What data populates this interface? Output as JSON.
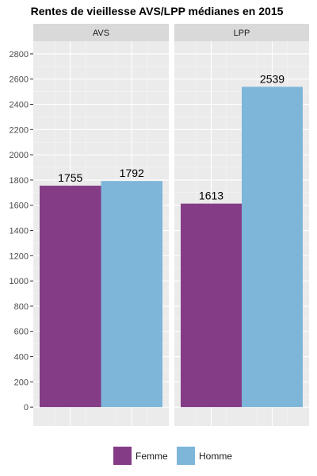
{
  "chart_data": {
    "type": "bar",
    "title": "Rentes de vieillesse AVS/LPP médianes en 2015",
    "xlabel": "",
    "ylabel": "",
    "facets": [
      "AVS",
      "LPP"
    ],
    "series": [
      {
        "name": "Femme",
        "color": "#843c86",
        "values": [
          1755,
          1613
        ]
      },
      {
        "name": "Homme",
        "color": "#7eb6da",
        "values": [
          1792,
          2539
        ]
      }
    ],
    "ylim": [
      -150,
      2900
    ],
    "yticks": [
      0,
      200,
      400,
      600,
      800,
      1000,
      1200,
      1400,
      1600,
      1800,
      2000,
      2200,
      2400,
      2600,
      2800
    ],
    "grid": true,
    "legend_position": "bottom",
    "panel_background": "#ebebeb",
    "strip_background": "#d9d9d9"
  }
}
